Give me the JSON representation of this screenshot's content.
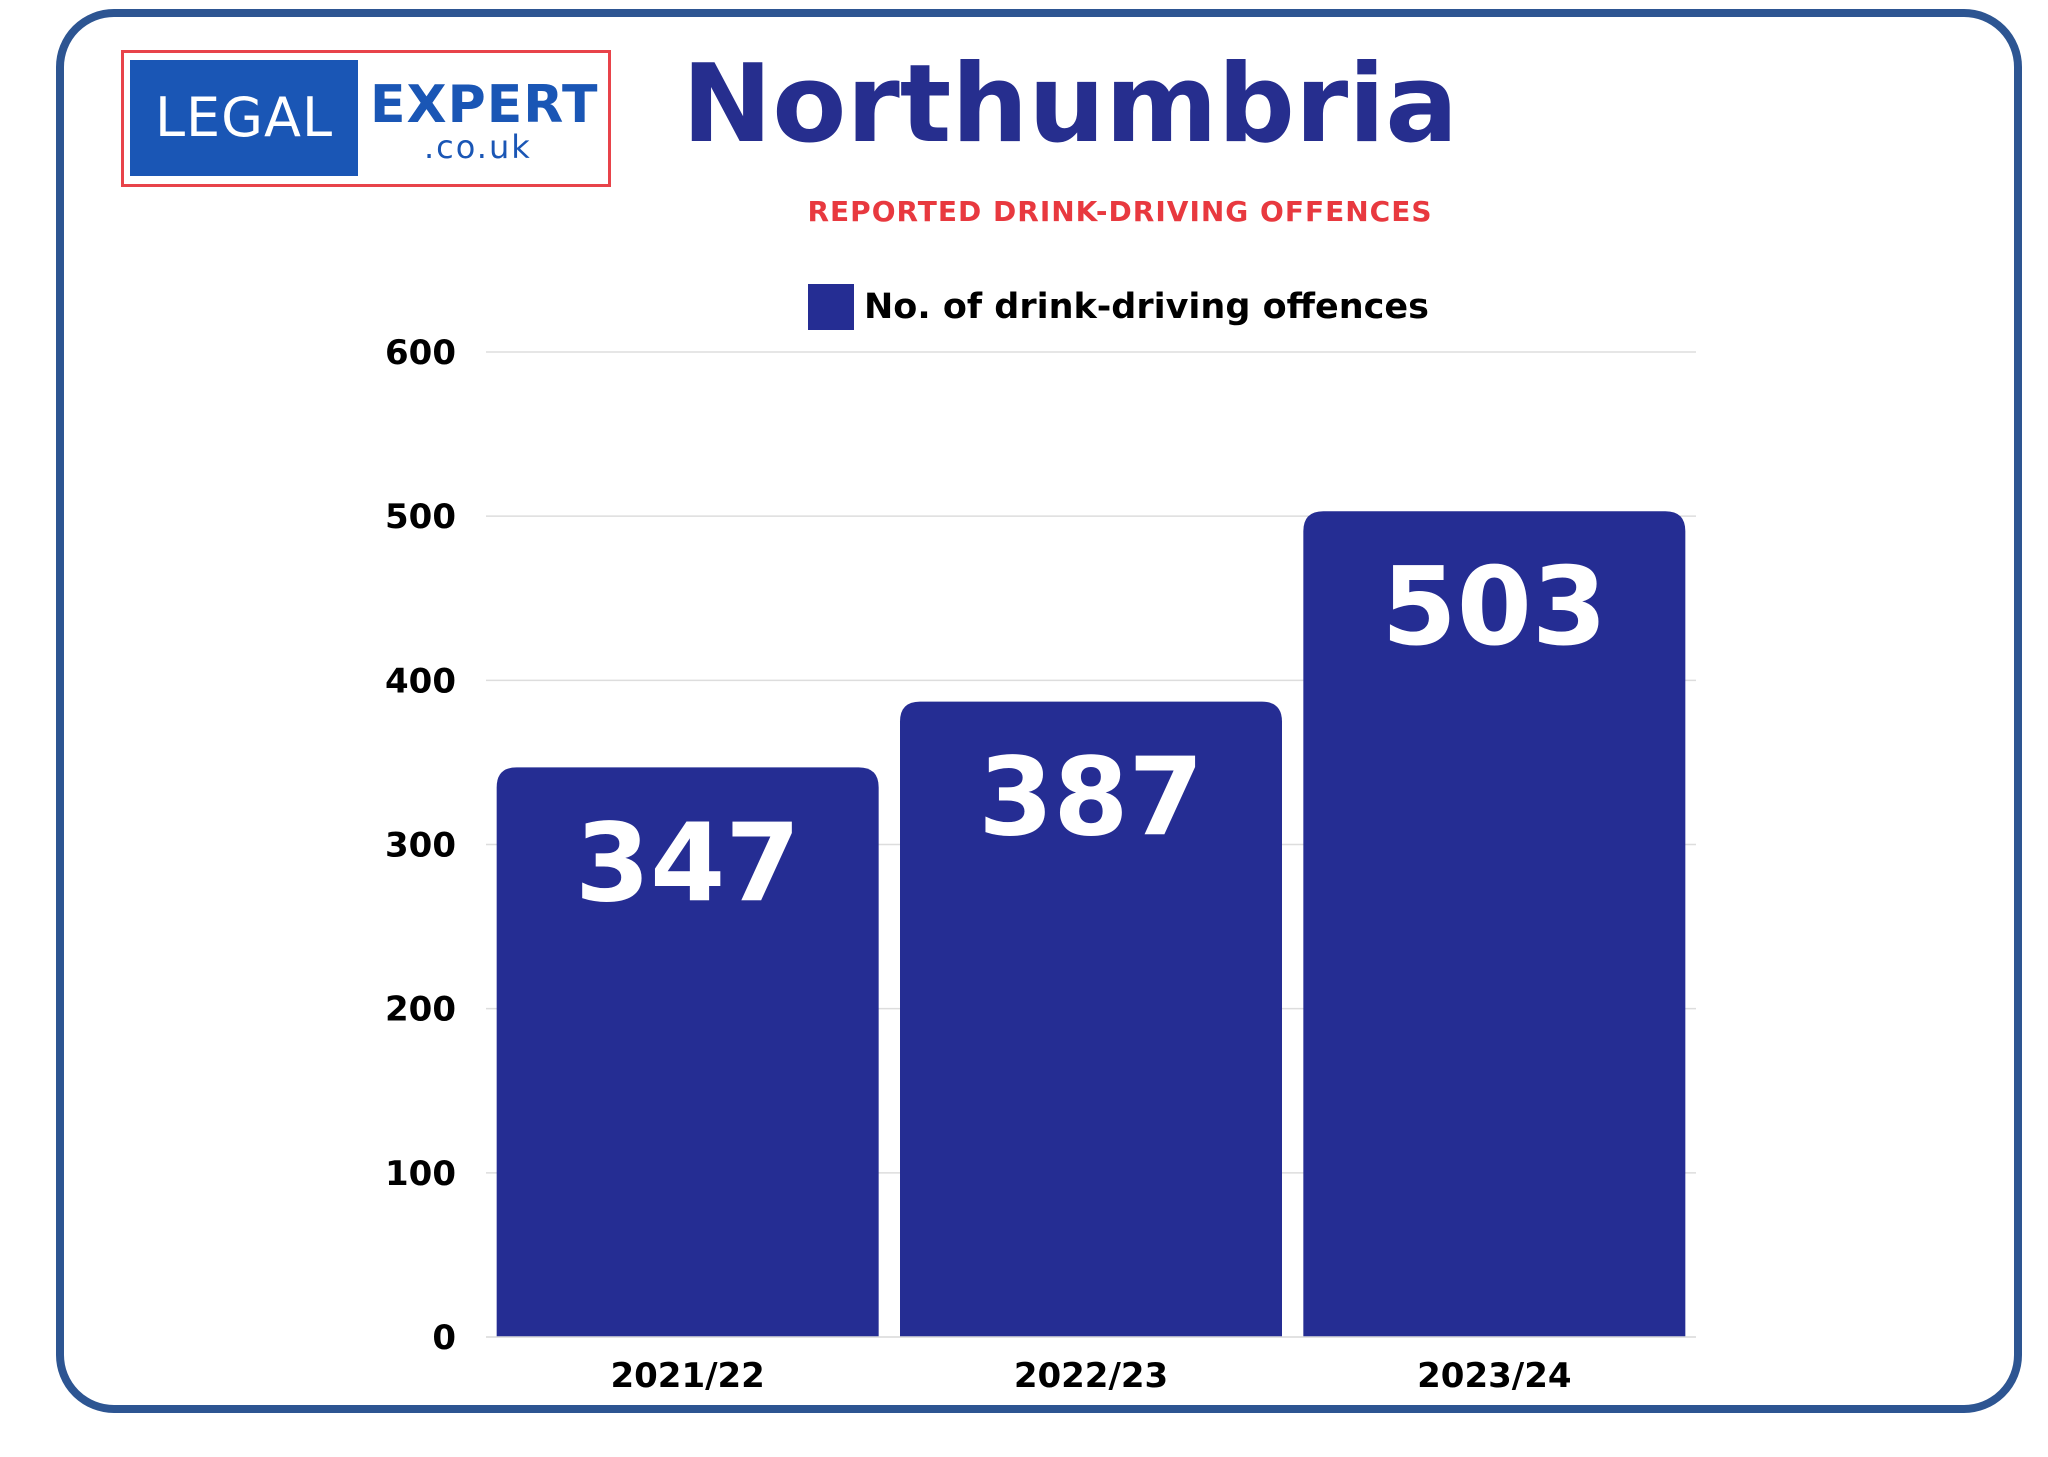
{
  "logo": {
    "left_text": "LEGAL",
    "right_text": "EXPERT",
    "domain_text": ".co.uk"
  },
  "chart_data": {
    "type": "bar",
    "title": "Northumbria",
    "subtitle": "REPORTED DRINK-DRIVING OFFENCES",
    "categories": [
      "2021/22",
      "2022/23",
      "2023/24"
    ],
    "series": [
      {
        "name": "No. of drink-driving offences",
        "values": [
          347,
          387,
          503
        ],
        "color": "#252d93"
      }
    ],
    "y_ticks": [
      0,
      100,
      200,
      300,
      400,
      500,
      600
    ],
    "ylim": [
      0,
      600
    ],
    "xlabel": "",
    "ylabel": "",
    "grid": true,
    "legend": "top-center",
    "data_labels": true
  },
  "colors": {
    "title": "#262e8e",
    "subtitle": "#e8393f",
    "frame": "#2d5592",
    "logo_blue": "#1a56b5",
    "logo_border": "#e8434a",
    "grid": "#dddddd"
  }
}
